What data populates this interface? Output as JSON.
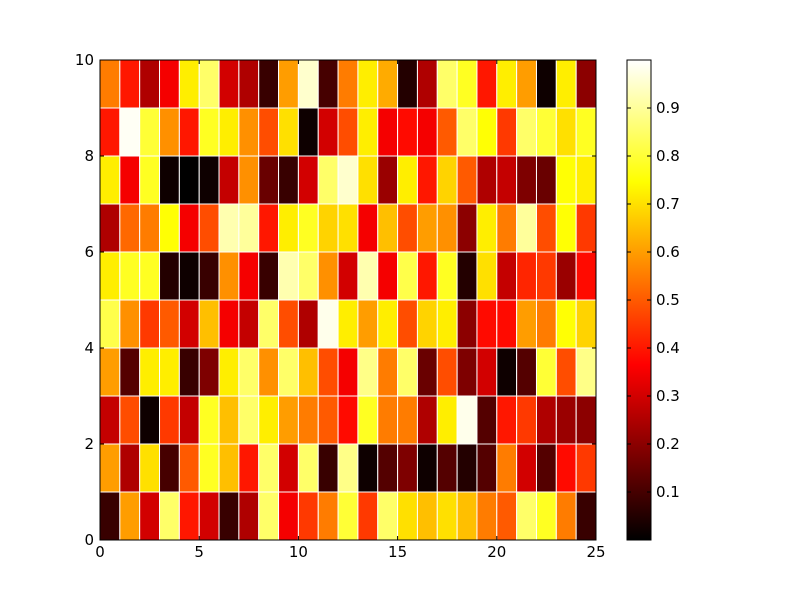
{
  "chart_data": {
    "type": "heatmap",
    "colormap": "hot",
    "cell_edgecolor": "#ffffff",
    "xlim": [
      0,
      25
    ],
    "ylim": [
      0,
      10
    ],
    "x_ticks": [
      0,
      5,
      10,
      15,
      20,
      25
    ],
    "y_ticks": [
      0,
      2,
      4,
      6,
      8,
      10
    ],
    "colorbar": {
      "range": [
        0.0,
        1.0
      ],
      "ticks": [
        0.1,
        0.2,
        0.3,
        0.4,
        0.5,
        0.6,
        0.7,
        0.8,
        0.9
      ]
    },
    "grid": false,
    "rows_bottom_to_top": [
      [
        0.08,
        0.6,
        0.3,
        0.85,
        0.4,
        0.3,
        0.08,
        0.25,
        0.85,
        0.35,
        0.45,
        0.55,
        0.8,
        0.45,
        0.85,
        0.7,
        0.65,
        0.7,
        0.65,
        0.55,
        0.5,
        0.85,
        0.78,
        0.55,
        0.08
      ],
      [
        0.6,
        0.25,
        0.7,
        0.1,
        0.5,
        0.78,
        0.65,
        0.4,
        0.85,
        0.3,
        0.85,
        0.08,
        0.88,
        0.02,
        0.12,
        0.18,
        0.02,
        0.12,
        0.05,
        0.12,
        0.55,
        0.3,
        0.12,
        0.38,
        0.45
      ],
      [
        0.28,
        0.48,
        0.02,
        0.45,
        0.28,
        0.78,
        0.65,
        0.85,
        0.72,
        0.6,
        0.55,
        0.5,
        0.38,
        0.78,
        0.55,
        0.55,
        0.25,
        0.72,
        0.98,
        0.12,
        0.4,
        0.45,
        0.25,
        0.22,
        0.2
      ],
      [
        0.6,
        0.12,
        0.72,
        0.72,
        0.08,
        0.18,
        0.72,
        0.85,
        0.58,
        0.85,
        0.65,
        0.48,
        0.35,
        0.88,
        0.55,
        0.85,
        0.15,
        0.48,
        0.18,
        0.3,
        0.02,
        0.12,
        0.8,
        0.48,
        0.88
      ],
      [
        0.82,
        0.58,
        0.45,
        0.5,
        0.3,
        0.65,
        0.35,
        0.28,
        0.85,
        0.48,
        0.25,
        0.98,
        0.72,
        0.6,
        0.72,
        0.48,
        0.68,
        0.72,
        0.2,
        0.38,
        0.38,
        0.6,
        0.55,
        0.75,
        0.68
      ],
      [
        0.72,
        0.78,
        0.78,
        0.05,
        0.02,
        0.08,
        0.58,
        0.35,
        0.08,
        0.92,
        0.85,
        0.58,
        0.3,
        0.92,
        0.35,
        0.82,
        0.4,
        0.78,
        0.05,
        0.7,
        0.28,
        0.42,
        0.45,
        0.22,
        0.38
      ],
      [
        0.25,
        0.52,
        0.55,
        0.75,
        0.35,
        0.48,
        0.92,
        0.9,
        0.4,
        0.72,
        0.78,
        0.68,
        0.7,
        0.35,
        0.65,
        0.48,
        0.6,
        0.58,
        0.2,
        0.72,
        0.55,
        0.9,
        0.48,
        0.75,
        0.45
      ],
      [
        0.72,
        0.35,
        0.78,
        0.02,
        0.0,
        0.02,
        0.28,
        0.58,
        0.15,
        0.08,
        0.3,
        0.85,
        0.95,
        0.7,
        0.22,
        0.72,
        0.4,
        0.68,
        0.5,
        0.25,
        0.28,
        0.18,
        0.15,
        0.75,
        0.72
      ],
      [
        0.4,
        0.99,
        0.8,
        0.58,
        0.4,
        0.78,
        0.72,
        0.58,
        0.48,
        0.7,
        0.02,
        0.3,
        0.48,
        0.72,
        0.35,
        0.38,
        0.35,
        0.5,
        0.85,
        0.75,
        0.45,
        0.85,
        0.8,
        0.7,
        0.78
      ],
      [
        0.55,
        0.4,
        0.25,
        0.35,
        0.72,
        0.85,
        0.3,
        0.25,
        0.08,
        0.6,
        0.95,
        0.1,
        0.55,
        0.72,
        0.62,
        0.05,
        0.25,
        0.85,
        0.78,
        0.4,
        0.72,
        0.6,
        0.02,
        0.72,
        0.2
      ]
    ]
  }
}
